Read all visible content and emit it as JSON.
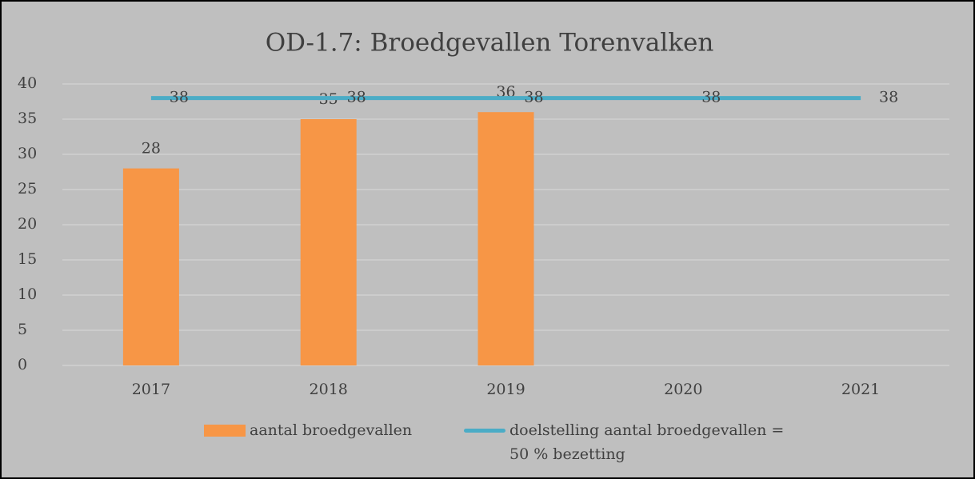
{
  "chart_data": {
    "type": "bar",
    "title": "OD-1.7: Broedgevallen Torenvalken",
    "categories": [
      "2017",
      "2018",
      "2019",
      "2020",
      "2021"
    ],
    "series": [
      {
        "name": "aantal broedgevallen",
        "type": "bar",
        "color": "#f79646",
        "values": [
          28,
          35,
          36,
          null,
          null
        ]
      },
      {
        "name": "doelstelling aantal broedgevallen = 50 % bezetting",
        "type": "line",
        "color": "#4bacc6",
        "values": [
          38,
          38,
          38,
          38,
          38
        ]
      }
    ],
    "ylim": [
      0,
      40
    ],
    "yticks": [
      0,
      5,
      10,
      15,
      20,
      25,
      30,
      35,
      40
    ],
    "grid": true,
    "legend": "bottom"
  }
}
